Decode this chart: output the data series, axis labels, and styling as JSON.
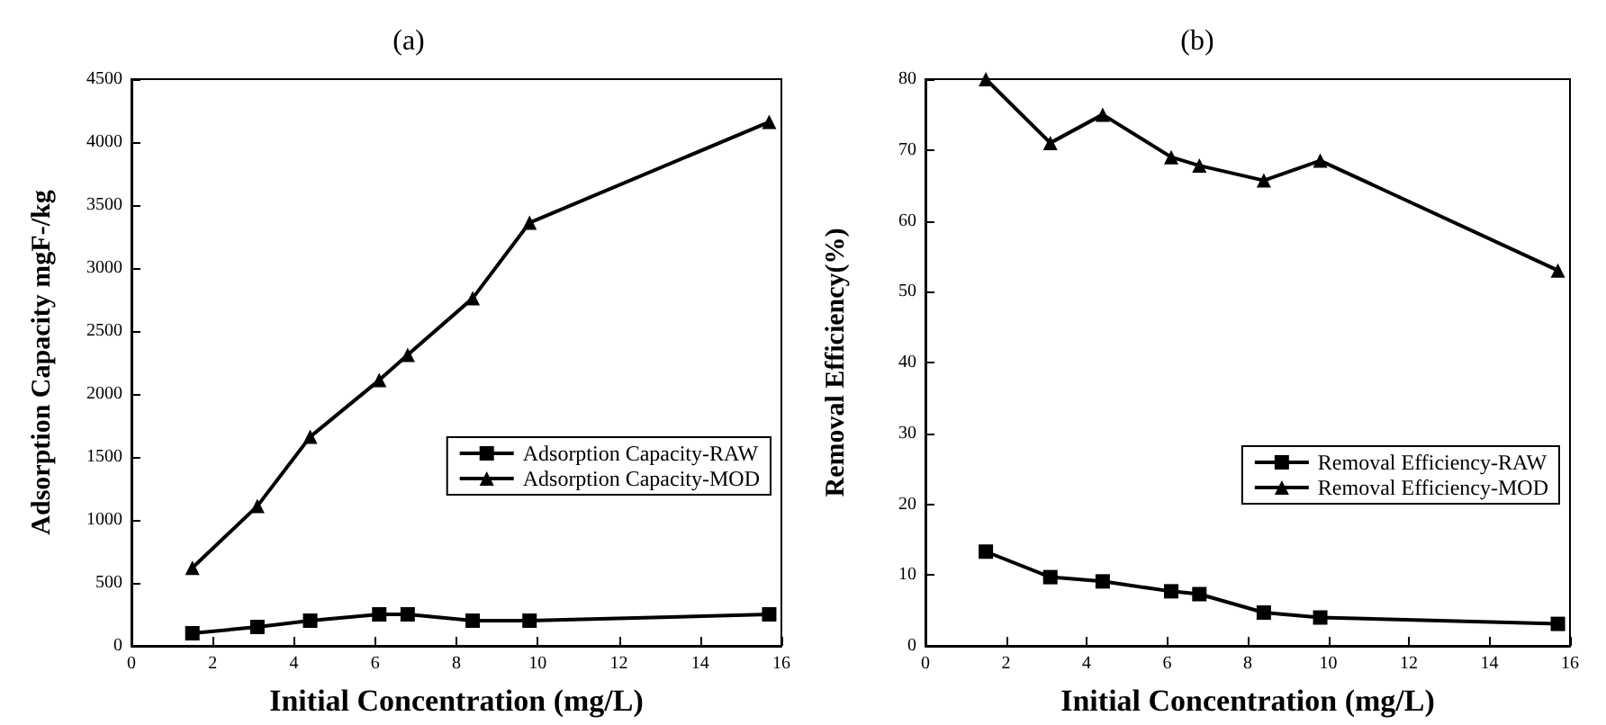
{
  "chart_data": [
    {
      "type": "line",
      "title": "(a)",
      "xlabel": "Initial Concentration (mg/L)",
      "ylabel": "Adsorption Capacity mgF-/kg",
      "x": [
        1.5,
        3.1,
        4.4,
        6.1,
        6.8,
        8.4,
        9.8,
        15.7
      ],
      "xlim": [
        0,
        16
      ],
      "xticks": [
        0,
        2,
        4,
        6,
        8,
        10,
        12,
        14,
        16
      ],
      "ylim": [
        0,
        4500
      ],
      "yticks": [
        0,
        500,
        1000,
        1500,
        2000,
        2500,
        3000,
        3500,
        4000,
        4500
      ],
      "grid": false,
      "legend": "right",
      "line_style": "solid",
      "series": [
        {
          "name": "Adsorption Capacity-RAW",
          "color": "#000000",
          "marker": "square",
          "values": [
            100,
            150,
            200,
            250,
            250,
            200,
            200,
            250
          ]
        },
        {
          "name": "Adsorption Capacity-MOD",
          "color": "#000000",
          "marker": "triangle",
          "values": [
            620,
            1110,
            1660,
            2110,
            2310,
            2760,
            3360,
            4160
          ]
        }
      ]
    },
    {
      "type": "line",
      "title": "(b)",
      "xlabel": "Initial Concentration (mg/L)",
      "ylabel": "Removal Efficiency(%)",
      "x": [
        1.5,
        3.1,
        4.4,
        6.1,
        6.8,
        8.4,
        9.8,
        15.7
      ],
      "xlim": [
        0,
        16
      ],
      "xticks": [
        0,
        2,
        4,
        6,
        8,
        10,
        12,
        14,
        16
      ],
      "ylim": [
        0,
        80
      ],
      "yticks": [
        0,
        10,
        20,
        30,
        40,
        50,
        60,
        70,
        80
      ],
      "grid": false,
      "legend": "bottom right",
      "line_style": "solid",
      "series": [
        {
          "name": "Removal Efficiency-RAW",
          "color": "#000000",
          "marker": "square",
          "values": [
            13.3,
            9.7,
            9.1,
            7.7,
            7.3,
            4.7,
            4.0,
            3.1
          ]
        },
        {
          "name": "Removal Efficiency-MOD",
          "color": "#000000",
          "marker": "triangle",
          "values": [
            80,
            71,
            75,
            69,
            67.8,
            65.7,
            68.5,
            53
          ]
        }
      ]
    }
  ]
}
